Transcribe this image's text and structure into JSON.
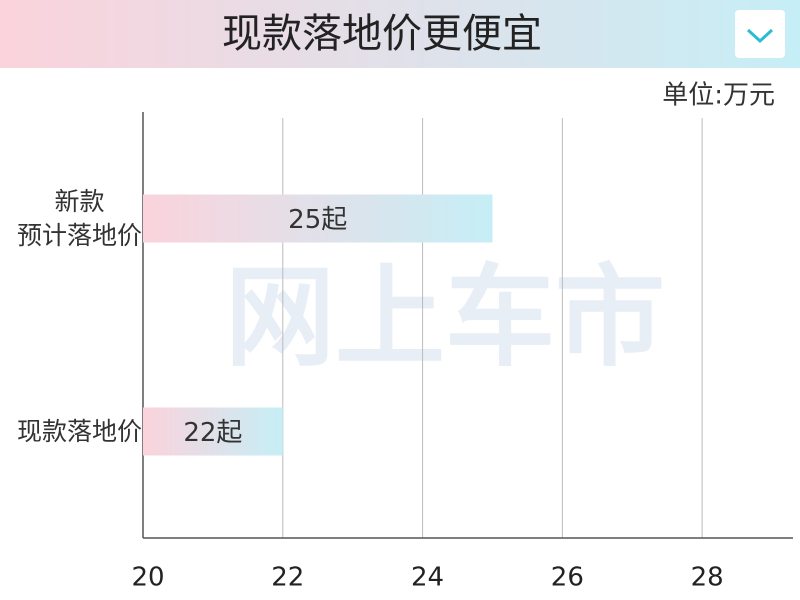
{
  "chart_data": {
    "type": "barh",
    "title": "现款落地价更便宜",
    "unit_label": "单位:万元",
    "watermark": "网上车市",
    "categories": [
      "新款\n预计落地价",
      "现款落地价"
    ],
    "values": [
      25,
      22
    ],
    "value_labels": [
      "25起",
      "22起"
    ],
    "color_start": "#fbd3dc",
    "color_end": "#c6eef6",
    "xlim": [
      20,
      29.3
    ],
    "xticks": [
      20,
      22,
      24,
      26,
      28
    ],
    "grid": true
  }
}
